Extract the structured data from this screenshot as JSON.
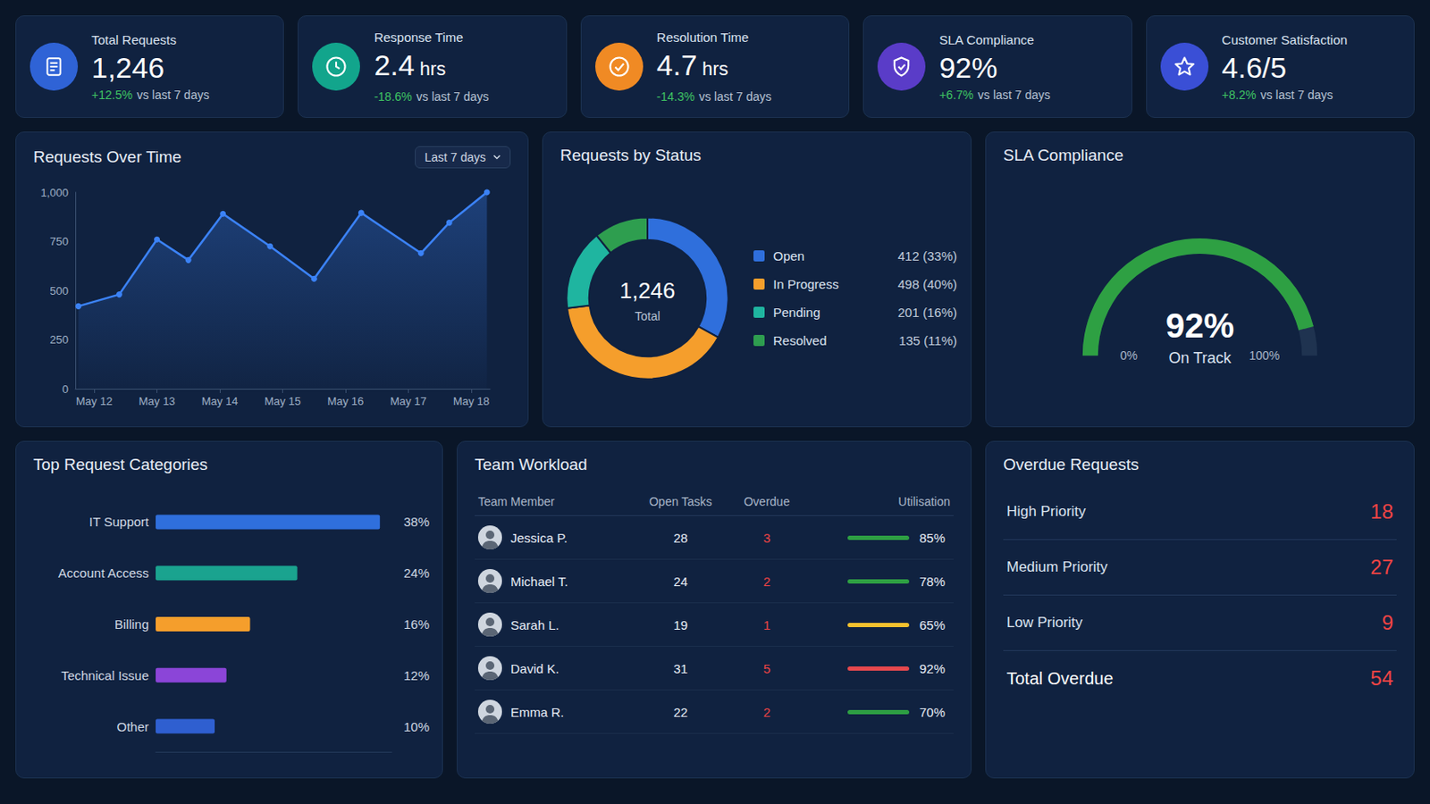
{
  "kpis": [
    {
      "label": "Total Requests",
      "value": "1,246",
      "change": "+12.5%",
      "note": "vs last 7 days",
      "color": "#2f63d6"
    },
    {
      "label": "Response Time",
      "value": "2.4",
      "unit": "hrs",
      "change": "-18.6%",
      "note": "vs last 7 days",
      "color": "#12a58c"
    },
    {
      "label": "Resolution Time",
      "value": "4.7",
      "unit": "hrs",
      "change": "-14.3%",
      "note": "vs last 7 days",
      "color": "#f08a24"
    },
    {
      "label": "SLA Compliance",
      "value": "92%",
      "change": "+6.7%",
      "note": "vs last 7 days",
      "color": "#5a3cc8"
    },
    {
      "label": "Customer Satisfaction",
      "value": "4.6/5",
      "change": "+8.2%",
      "note": "vs last 7 days",
      "color": "#3a4fd6"
    }
  ],
  "chart_data": [
    {
      "type": "line",
      "title": "Requests Over Time",
      "range_selector": "Last 7 days",
      "x": [
        11.75,
        12.4,
        13,
        13.5,
        14.05,
        14.8,
        15.5,
        16.25,
        17.2,
        17.65,
        18.25
      ],
      "values": [
        420,
        480,
        760,
        655,
        890,
        725,
        560,
        895,
        690,
        845,
        1000
      ],
      "xlim": [
        11.7,
        18.3
      ],
      "xticks": [
        {
          "value": 12,
          "label": "May 12"
        },
        {
          "value": 13,
          "label": "May 13"
        },
        {
          "value": 14,
          "label": "May 14"
        },
        {
          "value": 15,
          "label": "May 15"
        },
        {
          "value": 16,
          "label": "May 16"
        },
        {
          "value": 17,
          "label": "May 17"
        },
        {
          "value": 18,
          "label": "May 18"
        }
      ],
      "ylim": [
        0,
        1000
      ],
      "yticks": [
        0,
        250,
        500,
        750,
        {
          "value": 1000,
          "label": "1,000"
        }
      ],
      "color": "#3b82f6",
      "marker": "circle",
      "grid": false
    },
    {
      "type": "pie",
      "title": "Requests by Status",
      "categories": [
        "Open",
        "In Progress",
        "Pending",
        "Resolved"
      ],
      "values": [
        412,
        498,
        201,
        135
      ],
      "value_labels": [
        "412 (33%)",
        "498 (40%)",
        "201 (16%)",
        "135 (11%)"
      ],
      "colors": [
        "#2f6fdc",
        "#f59e2c",
        "#1fb5a0",
        "#2e9e4f"
      ],
      "total_label": "1,246",
      "total_caption": "Total",
      "legend": "right"
    },
    {
      "type": "gauge",
      "title": "SLA Compliance",
      "values": [
        92
      ],
      "value_labels": [
        "92%"
      ],
      "subtitle": "On Track",
      "ylim": [
        0,
        100
      ],
      "yticks": [
        {
          "value": 0,
          "label": "0%"
        },
        {
          "value": 100,
          "label": "100%"
        }
      ],
      "color": "#2ea043"
    },
    {
      "type": "bar",
      "title": "Top Request Categories",
      "orientation": "horizontal",
      "categories": [
        "IT Support",
        "Account Access",
        "Billing",
        "Technical Issue",
        "Other"
      ],
      "values": [
        38,
        24,
        16,
        12,
        10
      ],
      "value_labels": [
        "38%",
        "24%",
        "16%",
        "12%",
        "10%"
      ],
      "colors": [
        "#2f6fdc",
        "#1aa38f",
        "#f59e2c",
        "#8b45d8",
        "#2f5fd0"
      ],
      "xlim": [
        0,
        40
      ],
      "tick_labels": "y",
      "data_labels": true
    }
  ],
  "team_workload": {
    "title": "Team Workload",
    "header": [
      "Team Member",
      "Open Tasks",
      "Overdue",
      "Utilisation"
    ],
    "rows": [
      [
        "Jessica P.",
        "28",
        "3",
        "85%"
      ],
      [
        "Michael T.",
        "24",
        "2",
        "78%"
      ],
      [
        "Sarah L.",
        "19",
        "1",
        "65%"
      ],
      [
        "David K.",
        "31",
        "5",
        "92%"
      ],
      [
        "Emma R.",
        "22",
        "2",
        "70%"
      ]
    ],
    "colors": [
      "#2ea043",
      "#2ea043",
      "#f2c12e",
      "#e5484d",
      "#2ea043"
    ]
  },
  "overdue_requests": {
    "title": "Overdue Requests",
    "rows": [
      {
        "label": "High Priority",
        "value": "18"
      },
      {
        "label": "Medium Priority",
        "value": "27"
      },
      {
        "label": "Low Priority",
        "value": "9"
      }
    ],
    "total": {
      "label": "Total Overdue",
      "value": "54"
    }
  }
}
